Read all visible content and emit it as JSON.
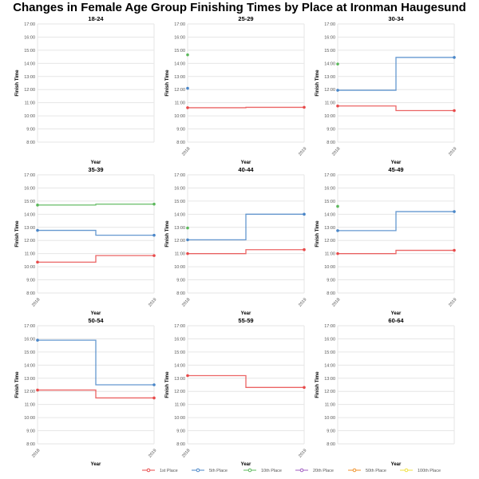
{
  "chart_data": {
    "type": "line",
    "title": "Changes in Female Age Group Finishing Times by Place at Ironman Haugesund",
    "xlabel": "Year",
    "ylabel": "Finish Time",
    "x": [
      "2018",
      "2019"
    ],
    "ylim": [
      8,
      17
    ],
    "yticks": [
      "8:00",
      "9:00",
      "10:00",
      "11:00",
      "12:00",
      "13:00",
      "14:00",
      "15:00",
      "16:00",
      "17:00"
    ],
    "legend_position": "bottom",
    "series_defs": [
      {
        "name": "1st Place",
        "color": "#e84a4a"
      },
      {
        "name": "5th Place",
        "color": "#4a86c8"
      },
      {
        "name": "10th Place",
        "color": "#5cb85c"
      },
      {
        "name": "20th Place",
        "color": "#a05cc0"
      },
      {
        "name": "50th Place",
        "color": "#f0922a"
      },
      {
        "name": "100th Place",
        "color": "#f0e040"
      }
    ],
    "panels": [
      {
        "title": "18-24",
        "series": []
      },
      {
        "title": "25-29",
        "series": [
          {
            "name": "1st Place",
            "values": [
              10.62,
              10.65
            ]
          },
          {
            "name": "5th Place",
            "values": [
              12.1,
              null
            ]
          },
          {
            "name": "10th Place",
            "values": [
              14.65,
              null
            ]
          }
        ]
      },
      {
        "title": "30-34",
        "series": [
          {
            "name": "1st Place",
            "values": [
              10.75,
              10.4
            ]
          },
          {
            "name": "5th Place",
            "values": [
              11.95,
              14.45
            ]
          },
          {
            "name": "10th Place",
            "values": [
              13.95,
              null
            ]
          }
        ]
      },
      {
        "title": "35-39",
        "series": [
          {
            "name": "1st Place",
            "values": [
              10.35,
              10.85
            ]
          },
          {
            "name": "5th Place",
            "values": [
              12.77,
              12.4
            ]
          },
          {
            "name": "10th Place",
            "values": [
              14.7,
              14.77
            ]
          }
        ]
      },
      {
        "title": "40-44",
        "series": [
          {
            "name": "1st Place",
            "values": [
              11.0,
              11.3
            ]
          },
          {
            "name": "5th Place",
            "values": [
              12.05,
              14.0
            ]
          },
          {
            "name": "10th Place",
            "values": [
              12.95,
              null
            ]
          }
        ]
      },
      {
        "title": "45-49",
        "series": [
          {
            "name": "1st Place",
            "values": [
              11.0,
              11.25
            ]
          },
          {
            "name": "5th Place",
            "values": [
              12.75,
              14.2
            ]
          },
          {
            "name": "10th Place",
            "values": [
              14.6,
              null
            ]
          }
        ]
      },
      {
        "title": "50-54",
        "series": [
          {
            "name": "1st Place",
            "values": [
              12.1,
              11.5
            ]
          },
          {
            "name": "5th Place",
            "values": [
              15.9,
              12.5
            ]
          }
        ]
      },
      {
        "title": "55-59",
        "series": [
          {
            "name": "1st Place",
            "values": [
              13.2,
              12.3
            ]
          }
        ]
      },
      {
        "title": "60-64",
        "series": []
      }
    ]
  }
}
